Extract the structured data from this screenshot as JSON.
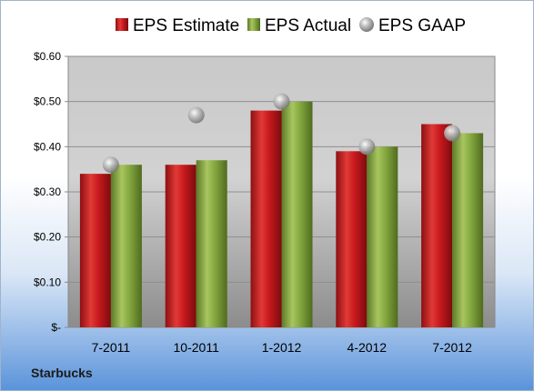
{
  "company": "Starbucks",
  "chart_data": {
    "type": "bar",
    "categories": [
      "7-2011",
      "10-2011",
      "1-2012",
      "4-2012",
      "7-2012"
    ],
    "series": [
      {
        "name": "EPS Estimate",
        "kind": "bar",
        "color": "#c0181c",
        "values": [
          0.34,
          0.36,
          0.48,
          0.39,
          0.45
        ]
      },
      {
        "name": "EPS Actual",
        "kind": "bar",
        "color": "#7ea33a",
        "values": [
          0.36,
          0.37,
          0.5,
          0.4,
          0.43
        ]
      },
      {
        "name": "EPS GAAP",
        "kind": "scatter",
        "color": "#b4b4b4",
        "values": [
          0.36,
          0.47,
          0.5,
          0.4,
          0.43
        ]
      }
    ],
    "ylim": [
      0,
      0.6
    ],
    "yticks": [
      0,
      0.1,
      0.2,
      0.3,
      0.4,
      0.5,
      0.6
    ],
    "ytick_labels": [
      "$-",
      "$0.10",
      "$0.20",
      "$0.30",
      "$0.40",
      "$0.50",
      "$0.60"
    ],
    "grid": true,
    "legend_position": "top"
  }
}
